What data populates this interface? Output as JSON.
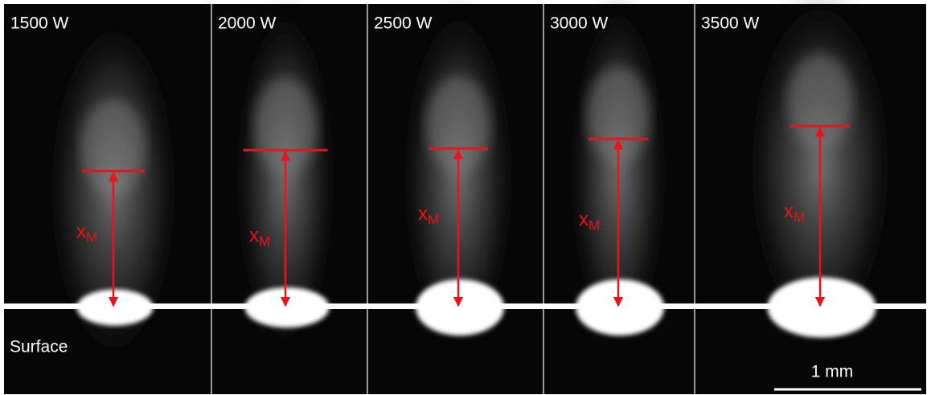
{
  "panels": [
    {
      "label": "1500 W"
    },
    {
      "label": "2000 W"
    },
    {
      "label": "2500 W"
    },
    {
      "label": "3000 W"
    },
    {
      "label": "3500 W"
    }
  ],
  "measure_label": {
    "main": "x",
    "sub": "M"
  },
  "surface_label": "Surface",
  "scale_bar_label": "1 mm"
}
